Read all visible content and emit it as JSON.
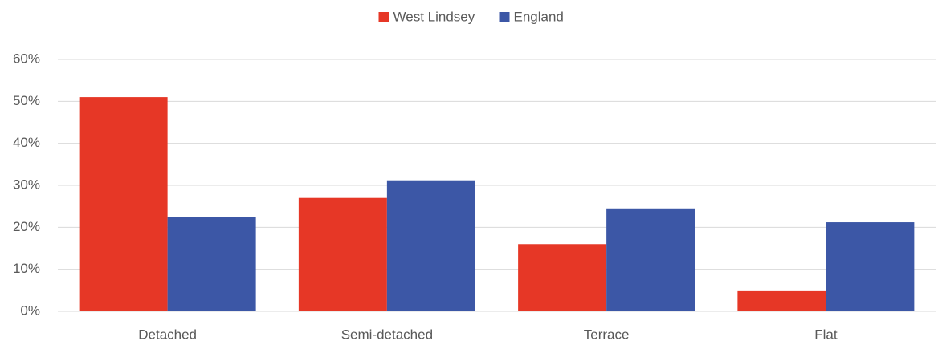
{
  "chart_data": {
    "type": "bar",
    "categories": [
      "Detached",
      "Semi-detached",
      "Terrace",
      "Flat"
    ],
    "series": [
      {
        "name": "West Lindsey",
        "color": "#e63726",
        "values": [
          51,
          27,
          16,
          4.8
        ]
      },
      {
        "name": "England",
        "color": "#3c57a6",
        "values": [
          22.5,
          31.2,
          24.5,
          21.2
        ]
      }
    ],
    "ylim": [
      0,
      60
    ],
    "yticks": [
      {
        "value": 0,
        "label": "0%"
      },
      {
        "value": 10,
        "label": "10%"
      },
      {
        "value": 20,
        "label": "20%"
      },
      {
        "value": 30,
        "label": "30%"
      },
      {
        "value": 40,
        "label": "40%"
      },
      {
        "value": 50,
        "label": "50%"
      },
      {
        "value": 60,
        "label": "60%"
      }
    ],
    "grid": true,
    "legend": "top"
  }
}
